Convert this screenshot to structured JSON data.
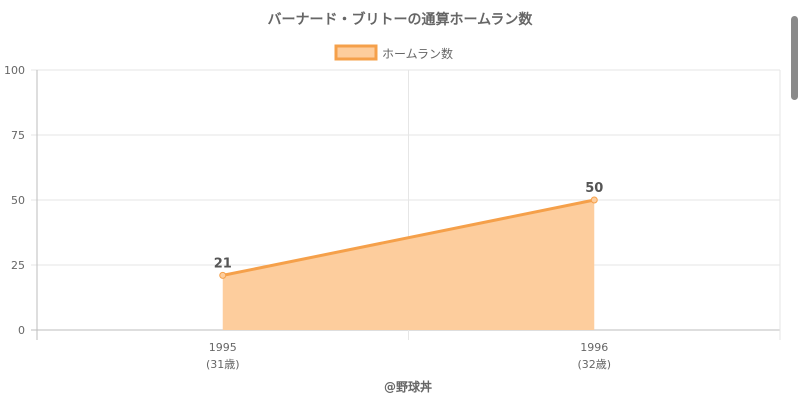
{
  "chart_data": {
    "type": "area",
    "title": "バーナード・ブリトーの通算ホームラン数",
    "categories": [
      "1995",
      "1996"
    ],
    "sublabels": [
      "(31歳)",
      "(32歳)"
    ],
    "series": [
      {
        "name": "ホームラン数",
        "values": [
          21,
          50
        ]
      }
    ],
    "ylim": [
      0,
      100
    ],
    "yticks": [
      0,
      25,
      50,
      75,
      100
    ],
    "grid": true,
    "legend": "top",
    "colors": {
      "line": "#f5a04a",
      "fill": "#fdcd9d",
      "grid": "#e6e6e6",
      "text": "#666666"
    },
    "footer": "@野球丼"
  }
}
